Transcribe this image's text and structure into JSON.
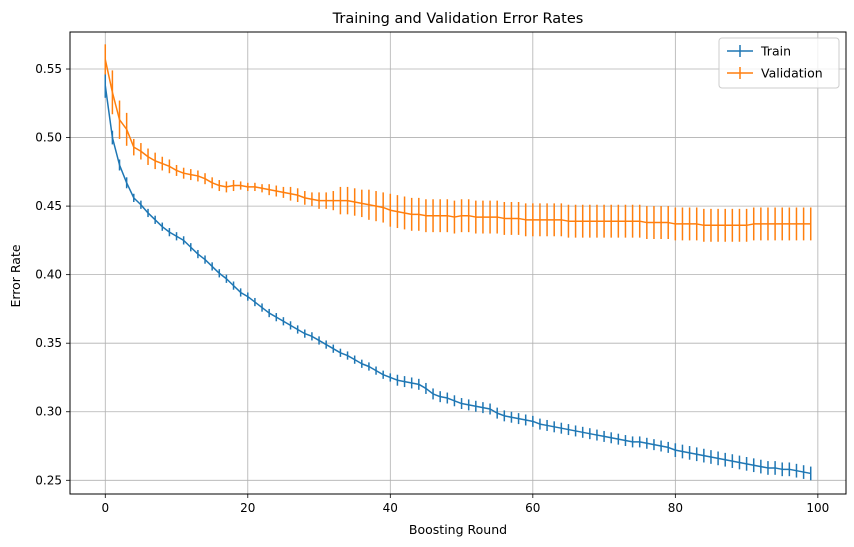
{
  "chart_data": {
    "type": "line",
    "title": "Training and Validation Error Rates",
    "xlabel": "Boosting Round",
    "ylabel": "Error Rate",
    "xlim": [
      -4.95,
      103.95
    ],
    "ylim": [
      0.24,
      0.577
    ],
    "xticks": [
      0,
      20,
      40,
      60,
      80,
      100
    ],
    "yticks": [
      0.25,
      0.3,
      0.35,
      0.4,
      0.45,
      0.5,
      0.55
    ],
    "xtick_labels": [
      "0",
      "20",
      "40",
      "60",
      "80",
      "100"
    ],
    "ytick_labels": [
      "0.25",
      "0.30",
      "0.35",
      "0.40",
      "0.45",
      "0.50",
      "0.55"
    ],
    "grid": true,
    "legend": "top-right",
    "series": [
      {
        "name": "Train",
        "color": "#1f77b4",
        "x": [
          0,
          1,
          2,
          3,
          4,
          5,
          6,
          7,
          8,
          9,
          10,
          11,
          12,
          13,
          14,
          15,
          16,
          17,
          18,
          19,
          20,
          21,
          22,
          23,
          24,
          25,
          26,
          27,
          28,
          29,
          30,
          31,
          32,
          33,
          34,
          35,
          36,
          37,
          38,
          39,
          40,
          41,
          42,
          43,
          44,
          45,
          46,
          47,
          48,
          49,
          50,
          51,
          52,
          53,
          54,
          55,
          56,
          57,
          58,
          59,
          60,
          61,
          62,
          63,
          64,
          65,
          66,
          67,
          68,
          69,
          70,
          71,
          72,
          73,
          74,
          75,
          76,
          77,
          78,
          79,
          80,
          81,
          82,
          83,
          84,
          85,
          86,
          87,
          88,
          89,
          90,
          91,
          92,
          93,
          94,
          95,
          96,
          97,
          98,
          99
        ],
        "y": [
          0.538,
          0.5,
          0.48,
          0.467,
          0.456,
          0.451,
          0.445,
          0.44,
          0.435,
          0.431,
          0.428,
          0.425,
          0.42,
          0.415,
          0.411,
          0.406,
          0.401,
          0.397,
          0.392,
          0.387,
          0.384,
          0.38,
          0.376,
          0.372,
          0.369,
          0.366,
          0.363,
          0.36,
          0.357,
          0.355,
          0.352,
          0.349,
          0.346,
          0.343,
          0.341,
          0.338,
          0.335,
          0.333,
          0.33,
          0.327,
          0.325,
          0.323,
          0.322,
          0.321,
          0.32,
          0.317,
          0.313,
          0.311,
          0.31,
          0.308,
          0.306,
          0.305,
          0.304,
          0.303,
          0.302,
          0.299,
          0.297,
          0.296,
          0.295,
          0.294,
          0.293,
          0.291,
          0.29,
          0.289,
          0.288,
          0.287,
          0.286,
          0.285,
          0.284,
          0.283,
          0.282,
          0.281,
          0.28,
          0.279,
          0.278,
          0.278,
          0.277,
          0.276,
          0.275,
          0.274,
          0.272,
          0.271,
          0.27,
          0.269,
          0.268,
          0.267,
          0.266,
          0.265,
          0.264,
          0.263,
          0.262,
          0.261,
          0.26,
          0.259,
          0.259,
          0.258,
          0.258,
          0.257,
          0.256,
          0.255
        ],
        "yerr": [
          0.009,
          0.005,
          0.004,
          0.004,
          0.003,
          0.003,
          0.003,
          0.003,
          0.003,
          0.003,
          0.003,
          0.003,
          0.003,
          0.003,
          0.003,
          0.003,
          0.003,
          0.003,
          0.003,
          0.003,
          0.003,
          0.003,
          0.003,
          0.003,
          0.003,
          0.003,
          0.003,
          0.003,
          0.003,
          0.003,
          0.003,
          0.003,
          0.003,
          0.003,
          0.003,
          0.003,
          0.003,
          0.003,
          0.003,
          0.003,
          0.003,
          0.004,
          0.004,
          0.004,
          0.004,
          0.004,
          0.004,
          0.004,
          0.004,
          0.004,
          0.004,
          0.004,
          0.004,
          0.004,
          0.004,
          0.004,
          0.004,
          0.004,
          0.004,
          0.004,
          0.004,
          0.004,
          0.004,
          0.004,
          0.004,
          0.004,
          0.004,
          0.004,
          0.004,
          0.004,
          0.004,
          0.004,
          0.004,
          0.004,
          0.004,
          0.004,
          0.004,
          0.004,
          0.004,
          0.004,
          0.005,
          0.005,
          0.005,
          0.005,
          0.005,
          0.005,
          0.005,
          0.005,
          0.005,
          0.005,
          0.005,
          0.005,
          0.005,
          0.005,
          0.005,
          0.005,
          0.005,
          0.005,
          0.005,
          0.005
        ]
      },
      {
        "name": "Validation",
        "color": "#ff7f0e",
        "x": [
          0,
          1,
          2,
          3,
          4,
          5,
          6,
          7,
          8,
          9,
          10,
          11,
          12,
          13,
          14,
          15,
          16,
          17,
          18,
          19,
          20,
          21,
          22,
          23,
          24,
          25,
          26,
          27,
          28,
          29,
          30,
          31,
          32,
          33,
          34,
          35,
          36,
          37,
          38,
          39,
          40,
          41,
          42,
          43,
          44,
          45,
          46,
          47,
          48,
          49,
          50,
          51,
          52,
          53,
          54,
          55,
          56,
          57,
          58,
          59,
          60,
          61,
          62,
          63,
          64,
          65,
          66,
          67,
          68,
          69,
          70,
          71,
          72,
          73,
          74,
          75,
          76,
          77,
          78,
          79,
          80,
          81,
          82,
          83,
          84,
          85,
          86,
          87,
          88,
          89,
          90,
          91,
          92,
          93,
          94,
          95,
          96,
          97,
          98,
          99
        ],
        "y": [
          0.557,
          0.533,
          0.513,
          0.506,
          0.493,
          0.49,
          0.486,
          0.483,
          0.481,
          0.479,
          0.476,
          0.474,
          0.473,
          0.472,
          0.47,
          0.467,
          0.465,
          0.464,
          0.465,
          0.465,
          0.464,
          0.464,
          0.463,
          0.462,
          0.461,
          0.46,
          0.459,
          0.458,
          0.456,
          0.455,
          0.454,
          0.454,
          0.454,
          0.454,
          0.454,
          0.453,
          0.452,
          0.451,
          0.45,
          0.449,
          0.447,
          0.446,
          0.445,
          0.444,
          0.444,
          0.443,
          0.443,
          0.443,
          0.443,
          0.442,
          0.443,
          0.443,
          0.442,
          0.442,
          0.442,
          0.442,
          0.441,
          0.441,
          0.441,
          0.44,
          0.44,
          0.44,
          0.44,
          0.44,
          0.44,
          0.439,
          0.439,
          0.439,
          0.439,
          0.439,
          0.439,
          0.439,
          0.439,
          0.439,
          0.439,
          0.439,
          0.438,
          0.438,
          0.438,
          0.438,
          0.437,
          0.437,
          0.437,
          0.437,
          0.436,
          0.436,
          0.436,
          0.436,
          0.436,
          0.436,
          0.436,
          0.437,
          0.437,
          0.437,
          0.437,
          0.437,
          0.437,
          0.437,
          0.437,
          0.437
        ],
        "yerr": [
          0.011,
          0.016,
          0.014,
          0.012,
          0.006,
          0.006,
          0.006,
          0.006,
          0.005,
          0.005,
          0.004,
          0.004,
          0.004,
          0.004,
          0.004,
          0.004,
          0.004,
          0.004,
          0.004,
          0.003,
          0.003,
          0.003,
          0.003,
          0.004,
          0.004,
          0.004,
          0.005,
          0.005,
          0.005,
          0.005,
          0.006,
          0.006,
          0.007,
          0.01,
          0.01,
          0.01,
          0.01,
          0.011,
          0.011,
          0.011,
          0.012,
          0.012,
          0.012,
          0.012,
          0.012,
          0.012,
          0.012,
          0.012,
          0.012,
          0.012,
          0.012,
          0.012,
          0.012,
          0.012,
          0.012,
          0.012,
          0.012,
          0.012,
          0.012,
          0.012,
          0.012,
          0.012,
          0.012,
          0.012,
          0.012,
          0.012,
          0.012,
          0.012,
          0.012,
          0.012,
          0.012,
          0.012,
          0.012,
          0.012,
          0.012,
          0.012,
          0.012,
          0.012,
          0.012,
          0.012,
          0.012,
          0.012,
          0.012,
          0.012,
          0.012,
          0.012,
          0.012,
          0.012,
          0.012,
          0.012,
          0.012,
          0.012,
          0.012,
          0.012,
          0.012,
          0.012,
          0.012,
          0.012,
          0.012,
          0.012
        ]
      }
    ]
  }
}
